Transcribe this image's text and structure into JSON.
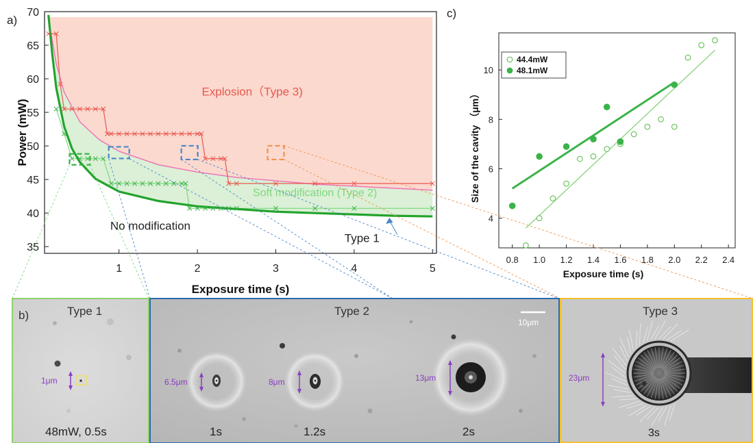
{
  "panel_labels": {
    "a": "a)",
    "b": "b)",
    "c": "c)"
  },
  "colors": {
    "red": "#e8584f",
    "pink": "#f06fb6",
    "green": "#3bb34a",
    "dark_green": "#22a32d",
    "light_green": "#7dd87f",
    "blue": "#4a86c8",
    "orange": "#f0934c",
    "purple": "#8a3fc0",
    "explosion_fill": "#fbd9cf",
    "soft_fill": "#dbf0d6",
    "frame_green": "#8fd06a",
    "frame_blue": "#2c6aa8",
    "frame_yellow": "#f2c12e"
  },
  "chart_data": [
    {
      "id": "a",
      "type": "line",
      "title": "",
      "xlabel": "Exposure time (s)",
      "ylabel": "Power (mW)",
      "xlim": [
        0.05,
        5.05
      ],
      "ylim": [
        34,
        70
      ],
      "xticks": [
        1,
        2,
        3,
        4,
        5
      ],
      "yticks": [
        35,
        40,
        45,
        50,
        55,
        60,
        65,
        70
      ],
      "series": [
        {
          "role": "explosion_threshold",
          "x": [
            0.1,
            0.2,
            0.25,
            0.3,
            0.4,
            0.5,
            0.6,
            0.7,
            0.8,
            0.85,
            0.9,
            1.0,
            1.1,
            1.2,
            1.3,
            1.4,
            1.5,
            1.6,
            1.7,
            1.8,
            1.9,
            2.0,
            2.05,
            2.1,
            2.2,
            2.3,
            2.35,
            2.4,
            2.5,
            3.0,
            3.5,
            4.0,
            5.0
          ],
          "values": [
            66.7,
            66.7,
            59.2,
            55.5,
            55.5,
            55.5,
            55.5,
            55.5,
            55.5,
            51.8,
            51.8,
            51.8,
            51.8,
            51.8,
            51.8,
            51.8,
            51.8,
            51.8,
            51.8,
            51.8,
            51.8,
            51.8,
            51.8,
            48.1,
            48.1,
            48.1,
            48.1,
            44.4,
            44.4,
            44.4,
            44.4,
            44.4,
            44.4
          ]
        },
        {
          "role": "modification_threshold",
          "x": [
            0.2,
            0.3,
            0.4,
            0.5,
            0.6,
            0.7,
            0.8,
            0.9,
            1.0,
            1.1,
            1.2,
            1.3,
            1.4,
            1.5,
            1.6,
            1.7,
            1.8,
            1.85,
            1.9,
            2.0,
            2.1,
            2.2,
            2.3,
            2.4,
            2.5,
            3.0,
            3.5,
            4.0,
            5.0
          ],
          "values": [
            55.5,
            51.8,
            48.1,
            48.1,
            48.1,
            48.1,
            48.1,
            44.4,
            44.4,
            44.4,
            44.4,
            44.4,
            44.4,
            44.4,
            44.4,
            44.4,
            44.4,
            44.4,
            40.7,
            40.7,
            40.7,
            40.7,
            40.7,
            40.7,
            40.7,
            40.7,
            40.7,
            40.7,
            40.7
          ]
        },
        {
          "role": "explosion_fit",
          "x": [
            0.1,
            0.2,
            0.3,
            0.5,
            0.75,
            1.0,
            1.5,
            2.0,
            2.5,
            3.0,
            3.5,
            4.0,
            4.5,
            5.0
          ],
          "values": [
            69.0,
            62.2,
            58.0,
            53.6,
            50.9,
            49.2,
            47.2,
            46.1,
            45.3,
            44.8,
            44.3,
            44.0,
            43.7,
            43.4
          ]
        },
        {
          "role": "modification_fit",
          "x": [
            0.1,
            0.15,
            0.2,
            0.3,
            0.4,
            0.5,
            0.7,
            1.0,
            1.5,
            2.0,
            2.5,
            3.0,
            3.5,
            4.0,
            4.5,
            5.0
          ],
          "values": [
            69.5,
            63.5,
            58.6,
            52.9,
            49.6,
            47.6,
            45.1,
            43.2,
            41.8,
            41.0,
            40.6,
            40.2,
            40.0,
            39.8,
            39.6,
            39.5
          ]
        }
      ],
      "annotations": [
        {
          "text": "Explosion（Type 3)",
          "x": 2.7,
          "y": 57.5
        },
        {
          "text": "Soft modification (Type 2)",
          "x": 3.5,
          "y": 42.5
        },
        {
          "text": "No modification",
          "x": 1.4,
          "y": 37.5
        },
        {
          "text": "Type 1",
          "x": 4.1,
          "y": 35.7
        }
      ],
      "highlight_points": [
        {
          "x": 0.5,
          "y": 48,
          "color": "green"
        },
        {
          "x": 1.0,
          "y": 49,
          "color": "blue"
        },
        {
          "x": 1.9,
          "y": 49,
          "color": "blue"
        },
        {
          "x": 3.0,
          "y": 49,
          "color": "orange"
        }
      ]
    },
    {
      "id": "c",
      "type": "scatter",
      "title": "",
      "xlabel": "Exposure time (s)",
      "ylabel": "Size of the cavity （μm）",
      "xlim": [
        0.7,
        2.45
      ],
      "ylim": [
        2.8,
        11.5
      ],
      "xticks": [
        0.8,
        1.0,
        1.2,
        1.4,
        1.6,
        1.8,
        2.0,
        2.2,
        2.4
      ],
      "xticklabels": [
        "0.8",
        "1.0",
        "1.2",
        "1.4",
        "1.6",
        "1.8",
        "2.0",
        "2.2",
        "2.4"
      ],
      "yticks": [
        4,
        6,
        8,
        10
      ],
      "legend": "top-left",
      "series": [
        {
          "name": "44.4mW",
          "marker": "open-circle",
          "x": [
            0.9,
            1.0,
            1.1,
            1.2,
            1.3,
            1.4,
            1.5,
            1.6,
            1.7,
            1.8,
            1.9,
            2.0,
            2.1,
            2.2,
            2.3
          ],
          "values": [
            2.9,
            4.0,
            4.8,
            5.4,
            6.4,
            6.5,
            6.8,
            7.0,
            7.4,
            7.7,
            8.0,
            7.7,
            10.5,
            11.0,
            11.2
          ],
          "fit": {
            "x": [
              0.9,
              2.3
            ],
            "values": [
              3.6,
              10.8
            ]
          }
        },
        {
          "name": "48.1mW",
          "marker": "filled-circle",
          "x": [
            0.8,
            1.0,
            1.2,
            1.4,
            1.5,
            1.6,
            2.0
          ],
          "values": [
            4.5,
            6.5,
            6.9,
            7.2,
            8.5,
            7.1,
            9.4
          ],
          "fit": {
            "x": [
              0.8,
              2.0
            ],
            "values": [
              5.2,
              9.5
            ]
          }
        }
      ]
    }
  ],
  "micrographs": {
    "type1": {
      "title": "Type 1",
      "caption": "48mW, 0.5s",
      "size_label": "1μm"
    },
    "type2": {
      "title": "Type 2",
      "scale_bar": "10μm",
      "panels": [
        {
          "caption": "1s",
          "size_label": "6.5μm"
        },
        {
          "caption": "1.2s",
          "size_label": "8μm"
        },
        {
          "caption": "2s",
          "size_label": "13μm"
        }
      ]
    },
    "type3": {
      "title": "Type 3",
      "caption": "3s",
      "size_label": "23μm"
    }
  }
}
